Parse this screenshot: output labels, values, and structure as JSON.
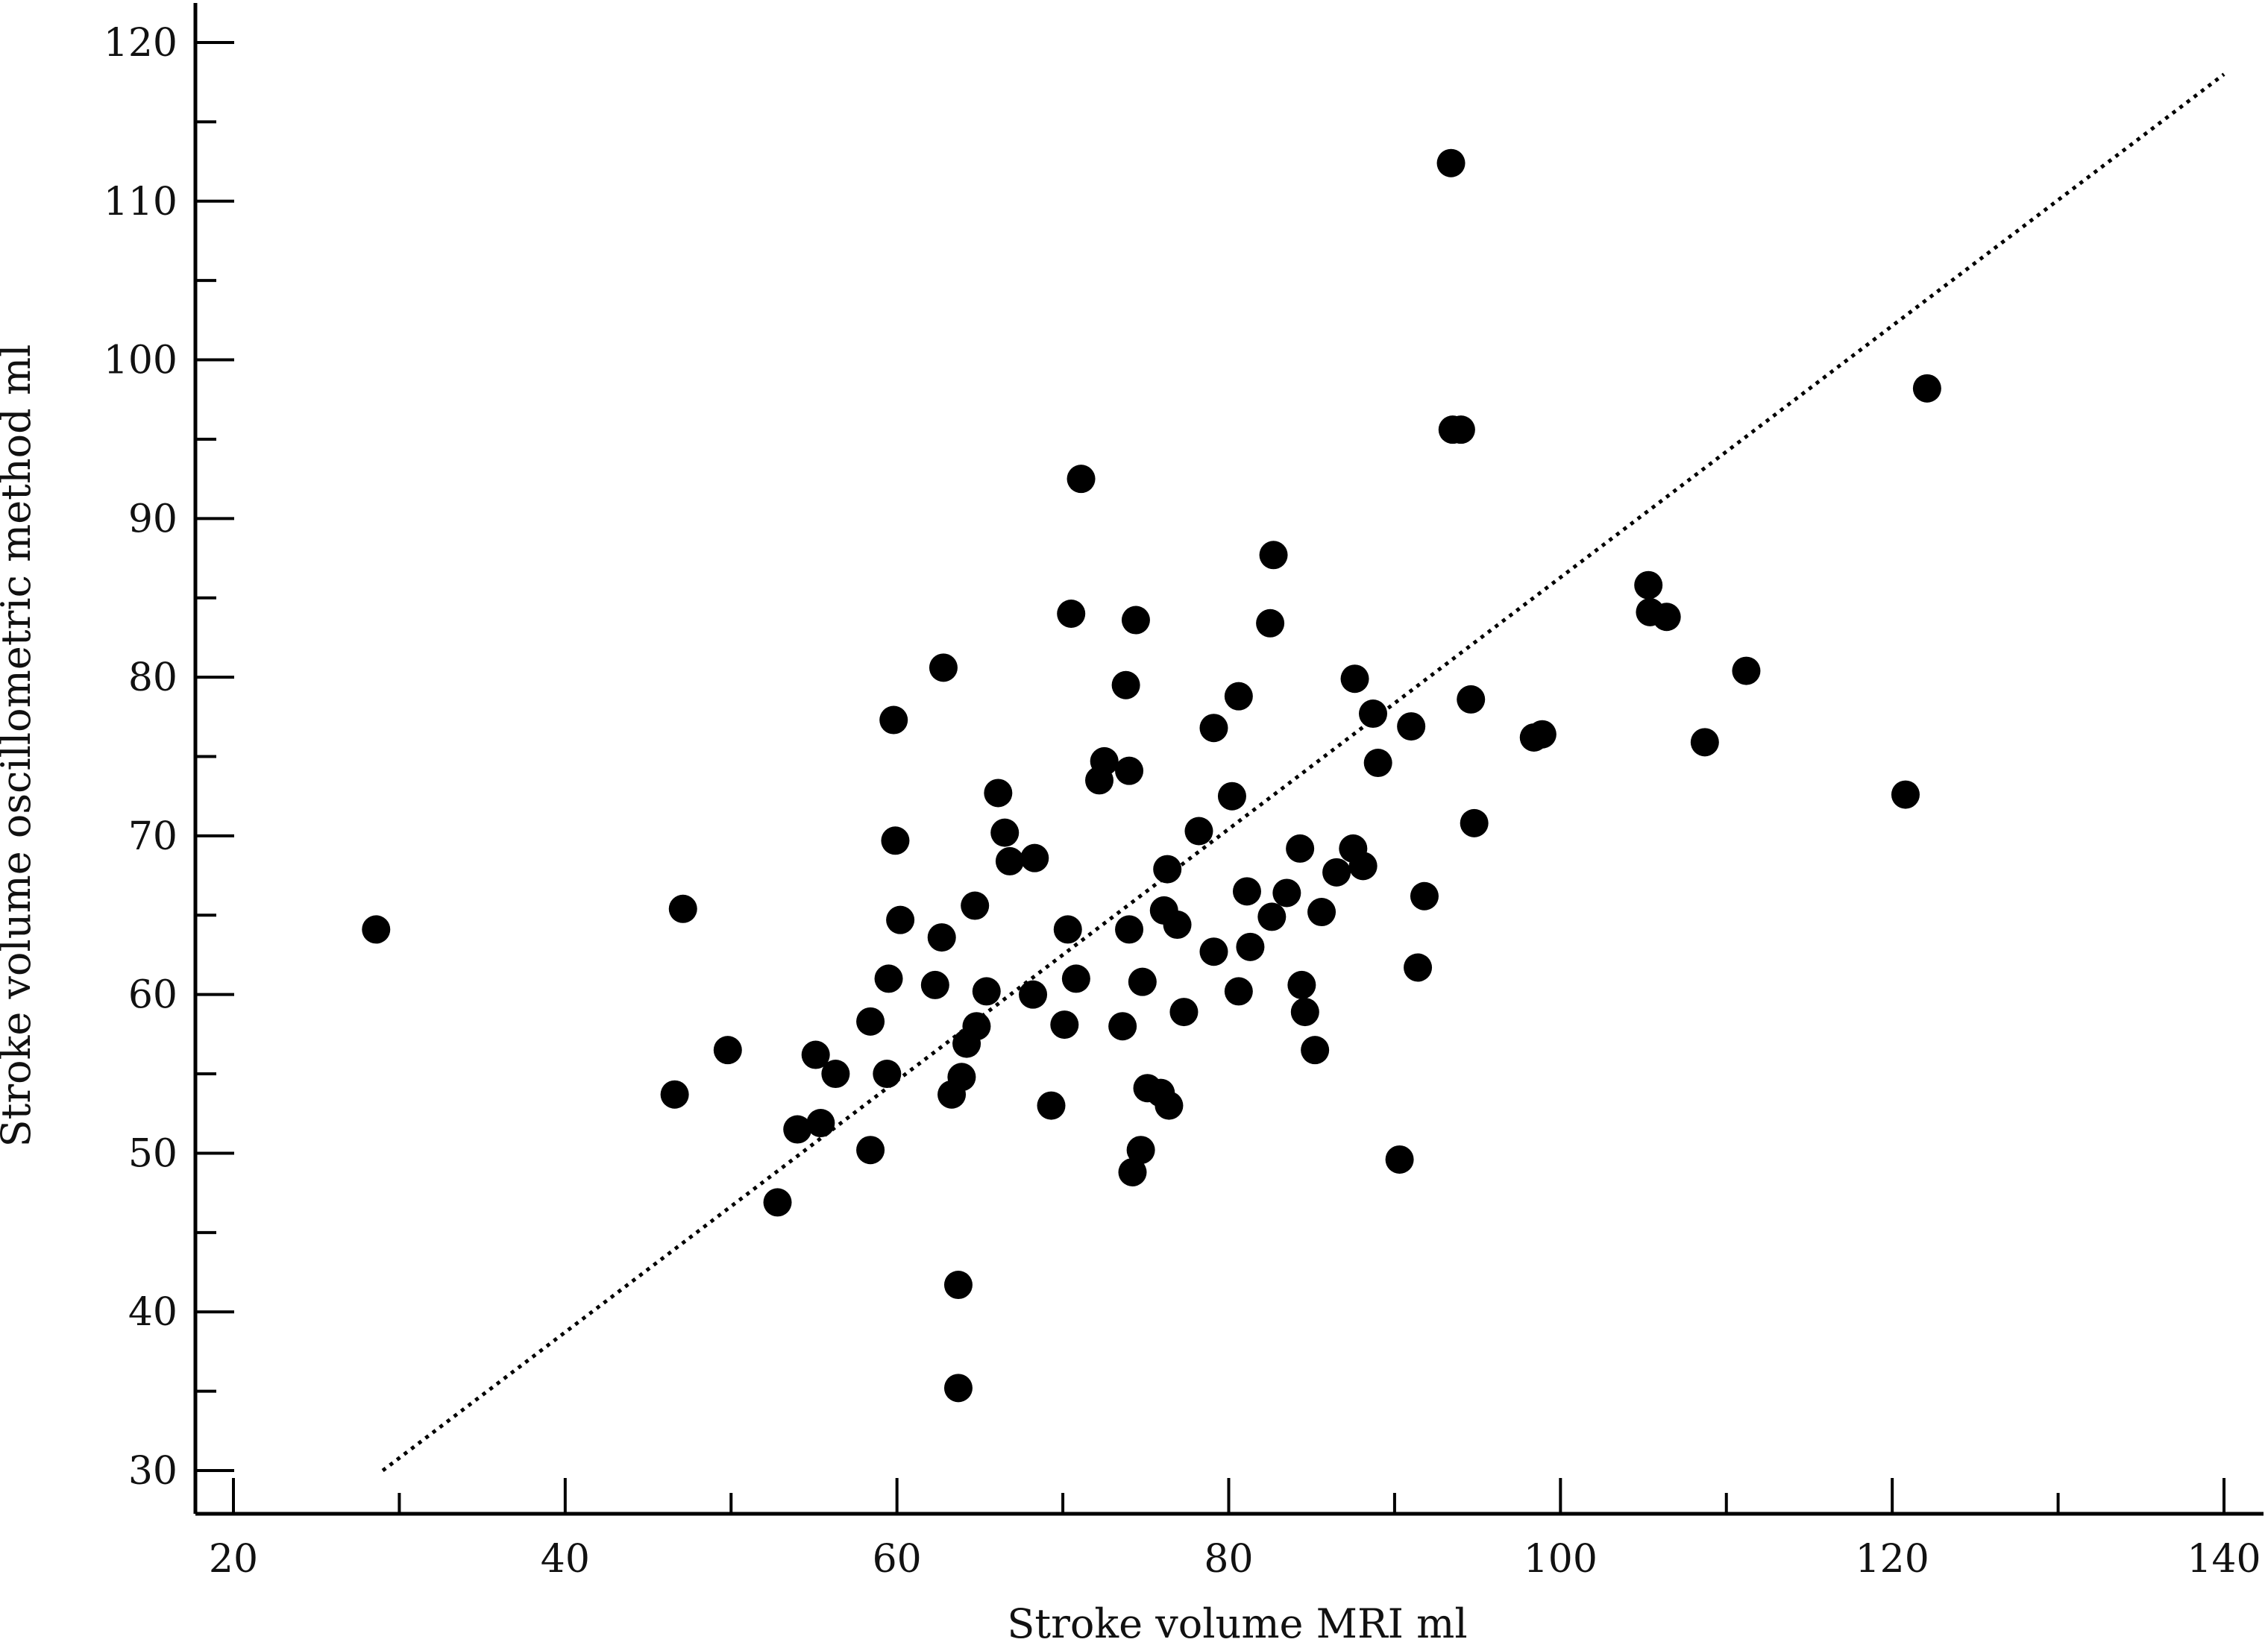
{
  "chart_data": {
    "type": "scatter",
    "title": "",
    "xlabel": "Stroke volume MRI ml",
    "ylabel": "Stroke volume oscillometric method ml",
    "xlim": [
      18,
      142
    ],
    "ylim": [
      27.5,
      122.5
    ],
    "xticks": [
      "20",
      "40",
      "60",
      "80",
      "100",
      "120",
      "140"
    ],
    "yticks": [
      "30",
      "40",
      "50",
      "60",
      "70",
      "80",
      "90",
      "100",
      "110",
      "120"
    ],
    "x_major_tick_values": [
      20,
      40,
      60,
      80,
      100,
      120,
      140
    ],
    "x_minor_tick_values": [
      30,
      50,
      70,
      90,
      110,
      130
    ],
    "y_major_tick_values": [
      30,
      40,
      50,
      60,
      70,
      80,
      90,
      100,
      110,
      120
    ],
    "y_minor_tick_values": [
      35,
      45,
      55,
      65,
      75,
      85,
      95,
      105,
      115
    ],
    "grid": false,
    "legend": "none",
    "marker_color": "#000000",
    "line_of_identity": {
      "x": [
        29,
        140
      ],
      "y": [
        30,
        118
      ],
      "style": "dotted"
    },
    "points": [
      [
        28.6,
        64.1
      ],
      [
        46.6,
        53.7
      ],
      [
        47.1,
        65.4
      ],
      [
        49.8,
        56.5
      ],
      [
        52.8,
        46.9
      ],
      [
        54.0,
        51.5
      ],
      [
        55.1,
        56.2
      ],
      [
        55.4,
        51.9
      ],
      [
        56.3,
        55.0
      ],
      [
        58.4,
        58.3
      ],
      [
        58.4,
        50.2
      ],
      [
        59.4,
        55.0
      ],
      [
        59.5,
        61.0
      ],
      [
        59.8,
        77.3
      ],
      [
        59.9,
        69.7
      ],
      [
        60.2,
        64.7
      ],
      [
        62.3,
        60.6
      ],
      [
        62.7,
        63.6
      ],
      [
        62.8,
        80.6
      ],
      [
        63.3,
        53.7
      ],
      [
        63.7,
        41.7
      ],
      [
        63.7,
        35.2
      ],
      [
        63.9,
        54.8
      ],
      [
        64.2,
        56.9
      ],
      [
        64.7,
        65.6
      ],
      [
        64.8,
        58.0
      ],
      [
        65.4,
        60.2
      ],
      [
        66.1,
        72.7
      ],
      [
        66.5,
        70.2
      ],
      [
        66.8,
        68.4
      ],
      [
        68.2,
        60.0
      ],
      [
        68.3,
        68.6
      ],
      [
        69.3,
        53.0
      ],
      [
        70.1,
        58.1
      ],
      [
        70.3,
        64.1
      ],
      [
        70.5,
        84.0
      ],
      [
        70.8,
        61.0
      ],
      [
        71.1,
        92.5
      ],
      [
        72.2,
        73.5
      ],
      [
        72.5,
        74.7
      ],
      [
        73.6,
        58.0
      ],
      [
        73.8,
        79.5
      ],
      [
        74.0,
        74.1
      ],
      [
        74.0,
        64.1
      ],
      [
        74.2,
        48.8
      ],
      [
        74.4,
        83.6
      ],
      [
        74.7,
        50.2
      ],
      [
        74.8,
        60.8
      ],
      [
        75.1,
        54.1
      ],
      [
        75.9,
        53.8
      ],
      [
        76.1,
        65.3
      ],
      [
        76.3,
        67.9
      ],
      [
        76.4,
        53.0
      ],
      [
        76.9,
        64.4
      ],
      [
        77.3,
        58.9
      ],
      [
        78.2,
        70.3
      ],
      [
        79.1,
        76.8
      ],
      [
        79.1,
        62.7
      ],
      [
        80.2,
        72.5
      ],
      [
        80.6,
        78.8
      ],
      [
        80.6,
        60.2
      ],
      [
        81.1,
        66.5
      ],
      [
        81.3,
        63.0
      ],
      [
        82.5,
        83.4
      ],
      [
        82.6,
        64.9
      ],
      [
        82.7,
        87.7
      ],
      [
        83.5,
        66.4
      ],
      [
        84.3,
        69.2
      ],
      [
        84.4,
        60.6
      ],
      [
        84.6,
        58.9
      ],
      [
        85.2,
        56.5
      ],
      [
        85.6,
        65.2
      ],
      [
        86.5,
        67.7
      ],
      [
        87.5,
        69.2
      ],
      [
        87.6,
        79.9
      ],
      [
        88.1,
        68.1
      ],
      [
        88.7,
        77.7
      ],
      [
        89.0,
        74.6
      ],
      [
        90.3,
        49.6
      ],
      [
        91.0,
        76.9
      ],
      [
        91.4,
        61.7
      ],
      [
        91.8,
        66.2
      ],
      [
        93.4,
        112.4
      ],
      [
        93.5,
        95.6
      ],
      [
        94.0,
        95.6
      ],
      [
        94.6,
        78.6
      ],
      [
        94.8,
        70.8
      ],
      [
        98.4,
        76.2
      ],
      [
        98.9,
        76.4
      ],
      [
        105.3,
        85.8
      ],
      [
        105.4,
        84.1
      ],
      [
        106.4,
        83.8
      ],
      [
        108.7,
        75.9
      ],
      [
        111.2,
        80.4
      ],
      [
        120.8,
        72.6
      ],
      [
        122.1,
        98.2
      ]
    ]
  }
}
